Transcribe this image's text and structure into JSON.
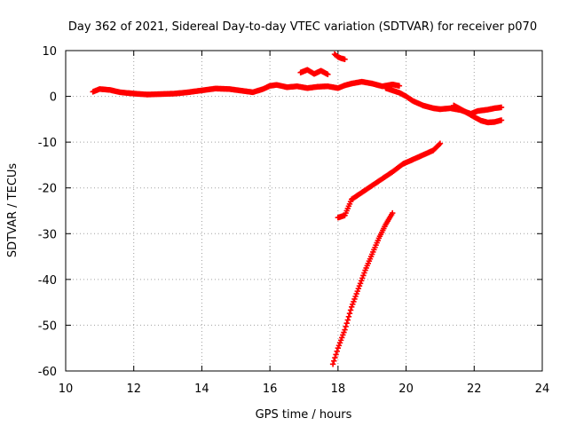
{
  "chart_data": {
    "type": "scatter",
    "title": "Day 362 of 2021, Sidereal Day-to-day VTEC variation (SDTVAR) for receiver p070",
    "xlabel": "GPS time / hours",
    "ylabel": "SDTVAR / TECUs",
    "xlim": [
      10,
      24
    ],
    "ylim": [
      -60,
      10
    ],
    "xticks": [
      "10",
      "12",
      "14",
      "16",
      "18",
      "20",
      "22",
      "24"
    ],
    "yticks": [
      "10",
      "0",
      "-10",
      "-20",
      "-30",
      "-40",
      "-50",
      "-60"
    ],
    "grid": true,
    "legend": "none",
    "marker": "plus",
    "color": "#ff0000",
    "series": [
      {
        "x": [
          10.8,
          11.0,
          11.3,
          11.6,
          12.0,
          12.4,
          12.8,
          13.2,
          13.6,
          14.0,
          14.4,
          14.8,
          15.2,
          15.5,
          15.8,
          16.0,
          16.2,
          16.5,
          16.8,
          17.1,
          17.4,
          17.7,
          18.0,
          18.2,
          18.4,
          18.7,
          19.0,
          19.3,
          19.6,
          19.8
        ],
        "y": [
          1.0,
          1.6,
          1.4,
          0.9,
          0.6,
          0.4,
          0.5,
          0.6,
          0.9,
          1.3,
          1.7,
          1.6,
          1.2,
          0.9,
          1.6,
          2.3,
          2.5,
          2.0,
          2.2,
          1.8,
          2.1,
          2.2,
          1.8,
          2.4,
          2.8,
          3.2,
          2.8,
          2.2,
          2.6,
          2.3
        ]
      },
      {
        "x": [
          16.9,
          17.1,
          17.3,
          17.5,
          17.7
        ],
        "y": [
          5.2,
          5.8,
          4.9,
          5.6,
          4.8
        ]
      },
      {
        "x": [
          17.9,
          18.0,
          18.1,
          18.2
        ],
        "y": [
          9.2,
          8.6,
          8.3,
          8.1
        ]
      },
      {
        "x": [
          19.4,
          19.8,
          20.0,
          20.2,
          20.5,
          20.8,
          21.0,
          21.3,
          21.6,
          21.9,
          22.1,
          22.4,
          22.6,
          22.8
        ],
        "y": [
          1.8,
          0.8,
          0.0,
          -1.0,
          -2.0,
          -2.6,
          -2.8,
          -2.6,
          -3.0,
          -3.8,
          -3.2,
          -2.9,
          -2.6,
          -2.4
        ]
      },
      {
        "x": [
          21.4,
          21.7,
          22.0,
          22.2,
          22.4,
          22.6,
          22.8
        ],
        "y": [
          -2.0,
          -3.2,
          -4.5,
          -5.3,
          -5.7,
          -5.6,
          -5.2
        ]
      },
      {
        "x": [
          18.0,
          18.2,
          18.4,
          18.7,
          19.0,
          19.3,
          19.6,
          19.9,
          20.2,
          20.5,
          20.8,
          21.0
        ],
        "y": [
          -26.5,
          -26.0,
          -22.5,
          -21.0,
          -19.5,
          -18.0,
          -16.5,
          -14.8,
          -13.8,
          -12.8,
          -11.8,
          -10.3
        ]
      },
      {
        "x": [
          17.85,
          18.0,
          18.2,
          18.4,
          18.6,
          18.8,
          19.0,
          19.2,
          19.4,
          19.6
        ],
        "y": [
          -58.5,
          -55.0,
          -51.0,
          -46.0,
          -42.0,
          -38.0,
          -34.5,
          -31.0,
          -28.0,
          -25.5
        ]
      }
    ]
  }
}
